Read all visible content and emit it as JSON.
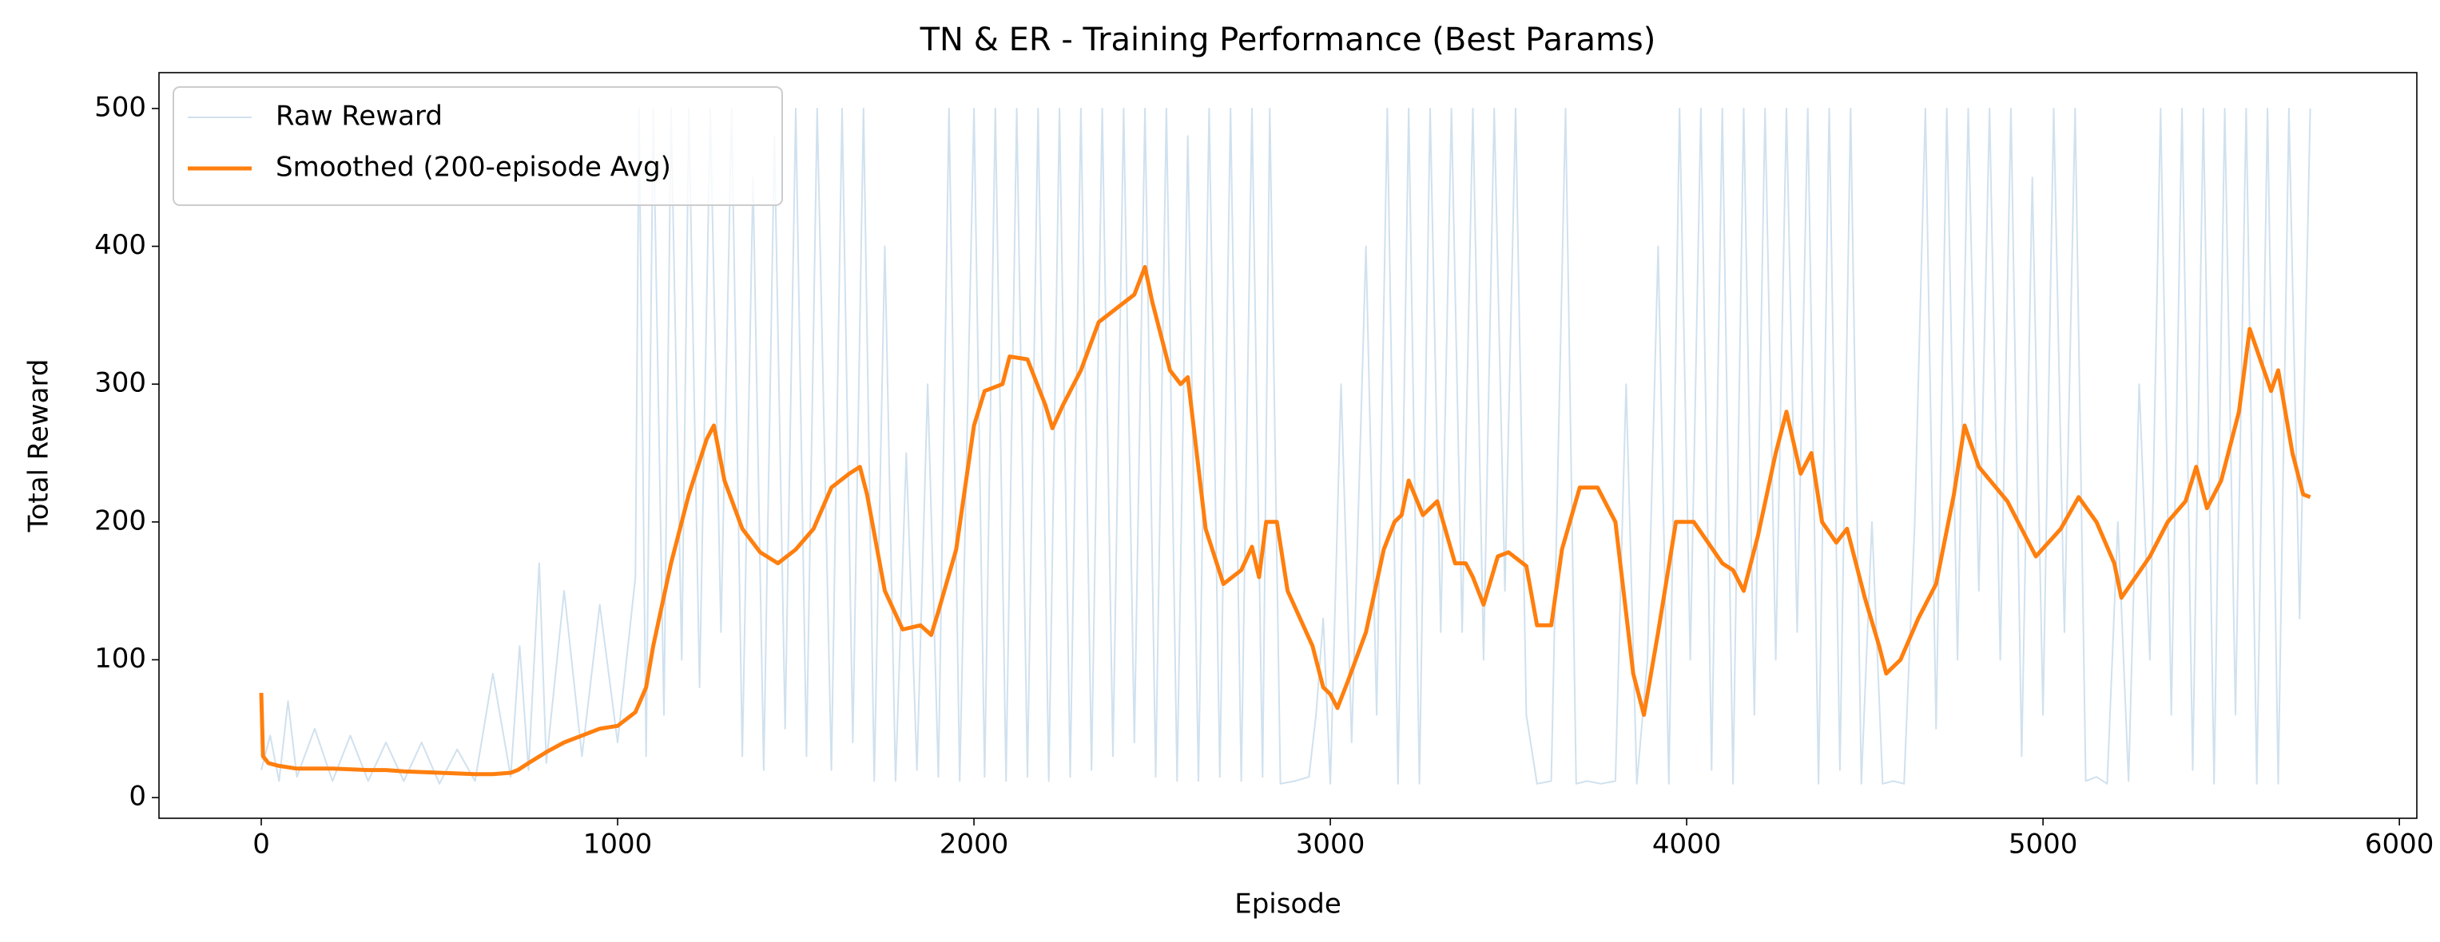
{
  "chart_data": {
    "type": "line",
    "title": "TN & ER - Training Performance (Best Params)",
    "x_label": "Episode",
    "y_label": "Total Reward",
    "xlim": [
      -287,
      6049
    ],
    "ylim": [
      -15,
      526
    ],
    "xticks": [
      0,
      1000,
      2000,
      3000,
      4000,
      5000,
      6000
    ],
    "yticks": [
      0,
      100,
      200,
      300,
      400,
      500
    ],
    "legend": "upper left",
    "series": [
      {
        "name": "Raw Reward",
        "color": "#d0e1ee",
        "width": 2,
        "x": [
          0,
          25,
          50,
          75,
          100,
          150,
          200,
          250,
          300,
          350,
          400,
          450,
          500,
          550,
          600,
          650,
          700,
          725,
          750,
          780,
          800,
          850,
          900,
          950,
          1000,
          1050,
          1060,
          1080,
          1100,
          1130,
          1150,
          1180,
          1200,
          1230,
          1260,
          1290,
          1320,
          1350,
          1380,
          1410,
          1440,
          1470,
          1500,
          1530,
          1560,
          1600,
          1630,
          1660,
          1690,
          1720,
          1750,
          1780,
          1810,
          1840,
          1870,
          1900,
          1930,
          1960,
          2000,
          2030,
          2060,
          2090,
          2120,
          2150,
          2180,
          2210,
          2240,
          2270,
          2300,
          2330,
          2360,
          2390,
          2420,
          2450,
          2480,
          2510,
          2540,
          2570,
          2600,
          2630,
          2660,
          2690,
          2720,
          2750,
          2780,
          2810,
          2830,
          2860,
          2900,
          2940,
          2960,
          2980,
          3000,
          3030,
          3060,
          3100,
          3130,
          3160,
          3190,
          3220,
          3250,
          3280,
          3310,
          3340,
          3370,
          3400,
          3430,
          3460,
          3490,
          3520,
          3550,
          3580,
          3620,
          3660,
          3690,
          3720,
          3760,
          3800,
          3830,
          3860,
          3890,
          3920,
          3950,
          3980,
          4010,
          4040,
          4070,
          4100,
          4130,
          4160,
          4190,
          4220,
          4250,
          4280,
          4310,
          4340,
          4370,
          4400,
          4430,
          4460,
          4490,
          4520,
          4550,
          4580,
          4610,
          4640,
          4670,
          4700,
          4730,
          4760,
          4790,
          4820,
          4850,
          4880,
          4910,
          4940,
          4970,
          5000,
          5030,
          5060,
          5090,
          5120,
          5150,
          5180,
          5210,
          5240,
          5270,
          5300,
          5330,
          5360,
          5390,
          5420,
          5450,
          5480,
          5510,
          5540,
          5570,
          5600,
          5630,
          5660,
          5690,
          5720,
          5750
        ],
        "values": [
          20,
          45,
          12,
          70,
          15,
          50,
          12,
          45,
          12,
          40,
          12,
          40,
          10,
          35,
          12,
          90,
          15,
          110,
          20,
          170,
          25,
          150,
          30,
          140,
          40,
          160,
          500,
          30,
          500,
          60,
          500,
          100,
          500,
          80,
          500,
          120,
          500,
          30,
          450,
          20,
          480,
          50,
          500,
          30,
          500,
          20,
          500,
          40,
          500,
          12,
          400,
          12,
          250,
          20,
          300,
          15,
          500,
          12,
          500,
          15,
          500,
          12,
          500,
          15,
          500,
          12,
          500,
          15,
          500,
          20,
          500,
          30,
          500,
          40,
          500,
          15,
          500,
          12,
          480,
          12,
          500,
          15,
          500,
          12,
          500,
          15,
          500,
          10,
          12,
          15,
          60,
          130,
          10,
          300,
          40,
          400,
          60,
          500,
          10,
          500,
          10,
          500,
          120,
          500,
          120,
          500,
          100,
          500,
          150,
          500,
          60,
          10,
          12,
          500,
          10,
          12,
          10,
          12,
          300,
          10,
          100,
          400,
          10,
          500,
          100,
          500,
          20,
          500,
          10,
          500,
          60,
          500,
          100,
          500,
          120,
          500,
          10,
          500,
          20,
          500,
          10,
          200,
          10,
          12,
          10,
          200,
          500,
          50,
          500,
          100,
          500,
          150,
          500,
          100,
          500,
          30,
          450,
          60,
          500,
          120,
          500,
          12,
          15,
          10,
          200,
          12,
          300,
          100,
          500,
          60,
          500,
          20,
          500,
          10,
          500,
          60,
          500,
          10,
          500,
          10,
          500,
          130,
          500
        ]
      },
      {
        "name": "Smoothed (200-episode Avg)",
        "color": "#ff7f0e",
        "width": 5,
        "x": [
          0,
          5,
          20,
          50,
          100,
          200,
          300,
          350,
          400,
          500,
          600,
          650,
          700,
          720,
          750,
          800,
          850,
          900,
          950,
          1000,
          1050,
          1080,
          1100,
          1150,
          1200,
          1250,
          1270,
          1300,
          1350,
          1400,
          1450,
          1500,
          1550,
          1600,
          1650,
          1680,
          1700,
          1750,
          1800,
          1850,
          1880,
          1900,
          1950,
          2000,
          2030,
          2080,
          2100,
          2150,
          2200,
          2220,
          2250,
          2300,
          2350,
          2400,
          2450,
          2480,
          2500,
          2550,
          2580,
          2600,
          2650,
          2700,
          2750,
          2780,
          2800,
          2820,
          2850,
          2880,
          2950,
          2980,
          3000,
          3020,
          3050,
          3100,
          3150,
          3180,
          3200,
          3220,
          3260,
          3300,
          3350,
          3380,
          3400,
          3430,
          3470,
          3500,
          3550,
          3580,
          3620,
          3650,
          3700,
          3750,
          3800,
          3850,
          3880,
          3920,
          3970,
          4020,
          4060,
          4100,
          4130,
          4160,
          4200,
          4250,
          4280,
          4320,
          4350,
          4380,
          4420,
          4450,
          4500,
          4540,
          4560,
          4600,
          4650,
          4700,
          4750,
          4780,
          4820,
          4900,
          4950,
          4980,
          5050,
          5100,
          5150,
          5200,
          5220,
          5260,
          5300,
          5350,
          5400,
          5430,
          5460,
          5500,
          5550,
          5580,
          5620,
          5640,
          5660,
          5700,
          5730,
          5750
        ],
        "values": [
          76,
          30,
          25,
          23,
          21,
          21,
          20,
          20,
          19,
          18,
          17,
          17,
          18,
          20,
          25,
          33,
          40,
          45,
          50,
          52,
          62,
          80,
          110,
          170,
          220,
          260,
          270,
          230,
          195,
          178,
          170,
          180,
          195,
          225,
          235,
          240,
          220,
          150,
          122,
          125,
          118,
          135,
          180,
          270,
          295,
          300,
          320,
          318,
          285,
          268,
          285,
          310,
          345,
          355,
          365,
          385,
          360,
          310,
          300,
          305,
          195,
          155,
          165,
          182,
          160,
          200,
          200,
          150,
          110,
          80,
          75,
          65,
          85,
          120,
          180,
          200,
          205,
          230,
          205,
          215,
          170,
          170,
          160,
          140,
          175,
          178,
          168,
          125,
          125,
          180,
          225,
          225,
          200,
          90,
          60,
          120,
          200,
          200,
          185,
          170,
          165,
          150,
          190,
          250,
          280,
          235,
          250,
          200,
          185,
          195,
          145,
          110,
          90,
          100,
          130,
          155,
          220,
          270,
          240,
          215,
          190,
          175,
          195,
          218,
          200,
          170,
          145,
          160,
          175,
          200,
          215,
          240,
          210,
          230,
          280,
          340,
          310,
          295,
          310,
          250,
          220,
          218
        ]
      }
    ]
  }
}
